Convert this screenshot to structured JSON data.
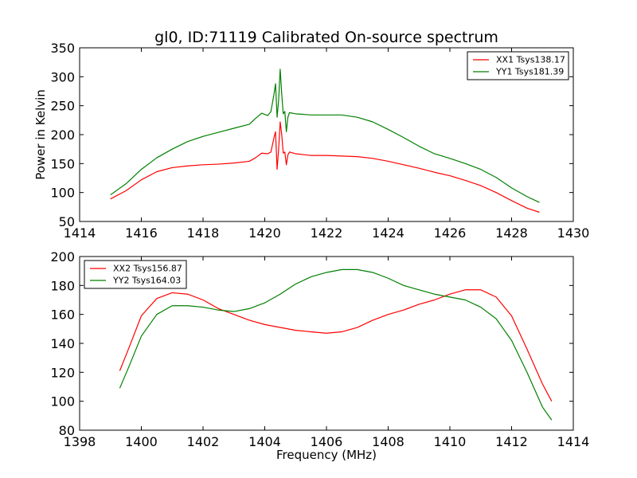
{
  "chart_data": [
    {
      "type": "line",
      "title": "gl0, ID:71119 Calibrated On-source spectrum",
      "xlabel": "",
      "ylabel": "Power in Kelvin",
      "xlim": [
        1414,
        1430
      ],
      "ylim": [
        50,
        350
      ],
      "xticks": [
        "1414",
        "1416",
        "1418",
        "1420",
        "1422",
        "1424",
        "1426",
        "1428",
        "1430"
      ],
      "yticks": [
        "50",
        "100",
        "150",
        "200",
        "250",
        "300",
        "350"
      ],
      "grid": false,
      "legend_position": "top-right",
      "series": [
        {
          "name": "XX1 Tsys138.17",
          "color": "#ff0000",
          "points": [
            [
              1415.0,
              89
            ],
            [
              1415.5,
              103
            ],
            [
              1416.0,
              122
            ],
            [
              1416.5,
              136
            ],
            [
              1417.0,
              143
            ],
            [
              1417.5,
              146
            ],
            [
              1418.0,
              148
            ],
            [
              1418.5,
              149
            ],
            [
              1419.0,
              151
            ],
            [
              1419.5,
              154
            ],
            [
              1419.7,
              160
            ],
            [
              1419.9,
              168
            ],
            [
              1420.1,
              167
            ],
            [
              1420.2,
              170
            ],
            [
              1420.3,
              195
            ],
            [
              1420.35,
              205
            ],
            [
              1420.4,
              140
            ],
            [
              1420.45,
              175
            ],
            [
              1420.5,
              222
            ],
            [
              1420.55,
              200
            ],
            [
              1420.6,
              168
            ],
            [
              1420.65,
              170
            ],
            [
              1420.7,
              148
            ],
            [
              1420.75,
              165
            ],
            [
              1420.8,
              170
            ],
            [
              1421.0,
              167
            ],
            [
              1421.5,
              164
            ],
            [
              1422.0,
              164
            ],
            [
              1422.5,
              163
            ],
            [
              1423.0,
              162
            ],
            [
              1423.5,
              159
            ],
            [
              1424.0,
              154
            ],
            [
              1424.5,
              148
            ],
            [
              1425.0,
              142
            ],
            [
              1425.5,
              135
            ],
            [
              1426.0,
              129
            ],
            [
              1426.5,
              121
            ],
            [
              1427.0,
              112
            ],
            [
              1427.5,
              100
            ],
            [
              1428.0,
              86
            ],
            [
              1428.5,
              73
            ],
            [
              1428.9,
              66
            ]
          ]
        },
        {
          "name": "YY1 Tsys181.39",
          "color": "#008000",
          "points": [
            [
              1415.0,
              96
            ],
            [
              1415.5,
              115
            ],
            [
              1416.0,
              140
            ],
            [
              1416.5,
              160
            ],
            [
              1417.0,
              175
            ],
            [
              1417.5,
              188
            ],
            [
              1418.0,
              197
            ],
            [
              1418.5,
              204
            ],
            [
              1419.0,
              211
            ],
            [
              1419.5,
              218
            ],
            [
              1419.7,
              228
            ],
            [
              1419.9,
              237
            ],
            [
              1420.1,
              233
            ],
            [
              1420.2,
              240
            ],
            [
              1420.3,
              270
            ],
            [
              1420.35,
              288
            ],
            [
              1420.4,
              230
            ],
            [
              1420.45,
              260
            ],
            [
              1420.5,
              313
            ],
            [
              1420.55,
              270
            ],
            [
              1420.6,
              236
            ],
            [
              1420.65,
              240
            ],
            [
              1420.7,
              205
            ],
            [
              1420.75,
              230
            ],
            [
              1420.8,
              238
            ],
            [
              1421.0,
              236
            ],
            [
              1421.5,
              234
            ],
            [
              1422.0,
              234
            ],
            [
              1422.5,
              234
            ],
            [
              1423.0,
              230
            ],
            [
              1423.5,
              222
            ],
            [
              1424.0,
              209
            ],
            [
              1424.5,
              195
            ],
            [
              1425.0,
              180
            ],
            [
              1425.5,
              167
            ],
            [
              1426.0,
              159
            ],
            [
              1426.5,
              150
            ],
            [
              1427.0,
              140
            ],
            [
              1427.5,
              126
            ],
            [
              1428.0,
              108
            ],
            [
              1428.5,
              93
            ],
            [
              1428.9,
              83
            ]
          ]
        }
      ]
    },
    {
      "type": "line",
      "title": "",
      "xlabel": "Frequency (MHz)",
      "ylabel": "",
      "xlim": [
        1398,
        1414
      ],
      "ylim": [
        80,
        200
      ],
      "xticks": [
        "1398",
        "1400",
        "1402",
        "1404",
        "1406",
        "1408",
        "1410",
        "1412",
        "1414"
      ],
      "yticks": [
        "80",
        "100",
        "120",
        "140",
        "160",
        "180",
        "200"
      ],
      "grid": false,
      "legend_position": "top-left",
      "series": [
        {
          "name": "XX2 Tsys156.87",
          "color": "#ff0000",
          "points": [
            [
              1399.3,
              121
            ],
            [
              1399.6,
              137
            ],
            [
              1400.0,
              159
            ],
            [
              1400.5,
              171
            ],
            [
              1401.0,
              175
            ],
            [
              1401.5,
              174
            ],
            [
              1402.0,
              170
            ],
            [
              1402.5,
              164
            ],
            [
              1403.0,
              160
            ],
            [
              1403.5,
              156
            ],
            [
              1404.0,
              153
            ],
            [
              1404.5,
              151
            ],
            [
              1405.0,
              149
            ],
            [
              1405.5,
              148
            ],
            [
              1406.0,
              147
            ],
            [
              1406.5,
              148
            ],
            [
              1407.0,
              151
            ],
            [
              1407.5,
              156
            ],
            [
              1408.0,
              160
            ],
            [
              1408.5,
              163
            ],
            [
              1409.0,
              167
            ],
            [
              1409.5,
              170
            ],
            [
              1410.0,
              174
            ],
            [
              1410.5,
              177
            ],
            [
              1411.0,
              177
            ],
            [
              1411.5,
              172
            ],
            [
              1412.0,
              159
            ],
            [
              1412.5,
              136
            ],
            [
              1413.0,
              112
            ],
            [
              1413.3,
              100
            ]
          ]
        },
        {
          "name": "YY2 Tsys164.03",
          "color": "#008000",
          "points": [
            [
              1399.3,
              109
            ],
            [
              1399.6,
              124
            ],
            [
              1400.0,
              145
            ],
            [
              1400.5,
              160
            ],
            [
              1401.0,
              166
            ],
            [
              1401.5,
              166
            ],
            [
              1402.0,
              165
            ],
            [
              1402.5,
              163
            ],
            [
              1403.0,
              162
            ],
            [
              1403.5,
              164
            ],
            [
              1404.0,
              168
            ],
            [
              1404.5,
              174
            ],
            [
              1405.0,
              181
            ],
            [
              1405.5,
              186
            ],
            [
              1406.0,
              189
            ],
            [
              1406.5,
              191
            ],
            [
              1407.0,
              191
            ],
            [
              1407.5,
              189
            ],
            [
              1408.0,
              185
            ],
            [
              1408.5,
              180
            ],
            [
              1409.0,
              177
            ],
            [
              1409.5,
              174
            ],
            [
              1410.0,
              172
            ],
            [
              1410.5,
              170
            ],
            [
              1411.0,
              165
            ],
            [
              1411.5,
              157
            ],
            [
              1412.0,
              142
            ],
            [
              1412.5,
              120
            ],
            [
              1413.0,
              96
            ],
            [
              1413.3,
              87
            ]
          ]
        }
      ]
    }
  ]
}
